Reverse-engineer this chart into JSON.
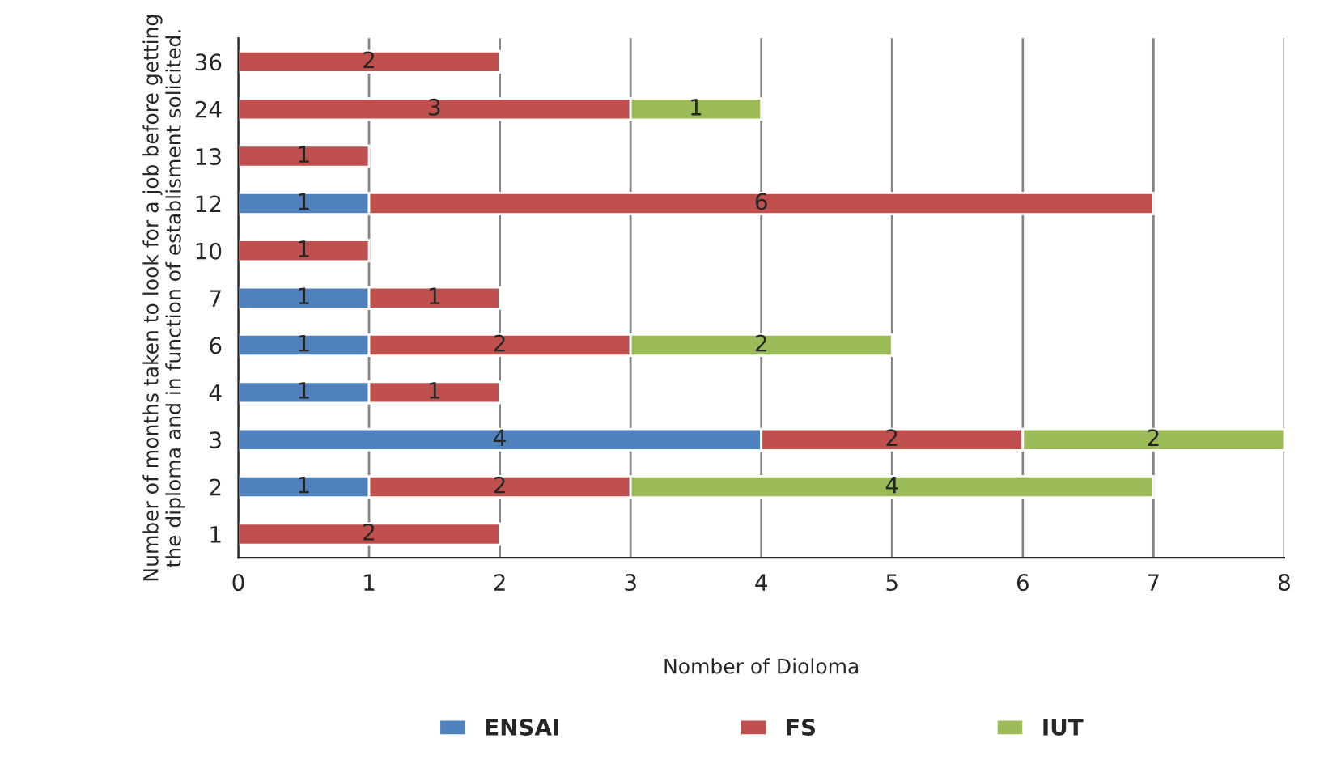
{
  "chart_data": {
    "type": "bar",
    "orientation": "horizontal",
    "stacked": true,
    "xlabel": "Nomber of Dioloma",
    "ylabel": "Number of months taken to look for a job before getting\nthe diploma and in function of establisment solicited.",
    "categories": [
      "36",
      "24",
      "13",
      "12",
      "10",
      "7",
      "6",
      "4",
      "3",
      "2",
      "1"
    ],
    "series": [
      {
        "name": "ENSAI",
        "color": "#4f81bd",
        "values": [
          null,
          null,
          null,
          1,
          null,
          1,
          1,
          1,
          4,
          1,
          null
        ]
      },
      {
        "name": "FS",
        "color": "#c0504d",
        "values": [
          2,
          3,
          1,
          6,
          1,
          1,
          2,
          1,
          2,
          2,
          2
        ]
      },
      {
        "name": "IUT",
        "color": "#9bbb59",
        "values": [
          null,
          1,
          null,
          null,
          null,
          null,
          2,
          null,
          2,
          4,
          null
        ]
      }
    ],
    "xlim": [
      0,
      8
    ],
    "xticks": [
      0,
      1,
      2,
      3,
      4,
      5,
      6,
      7,
      8
    ],
    "grid": "x",
    "legend": "bottom",
    "data_labels": true
  }
}
